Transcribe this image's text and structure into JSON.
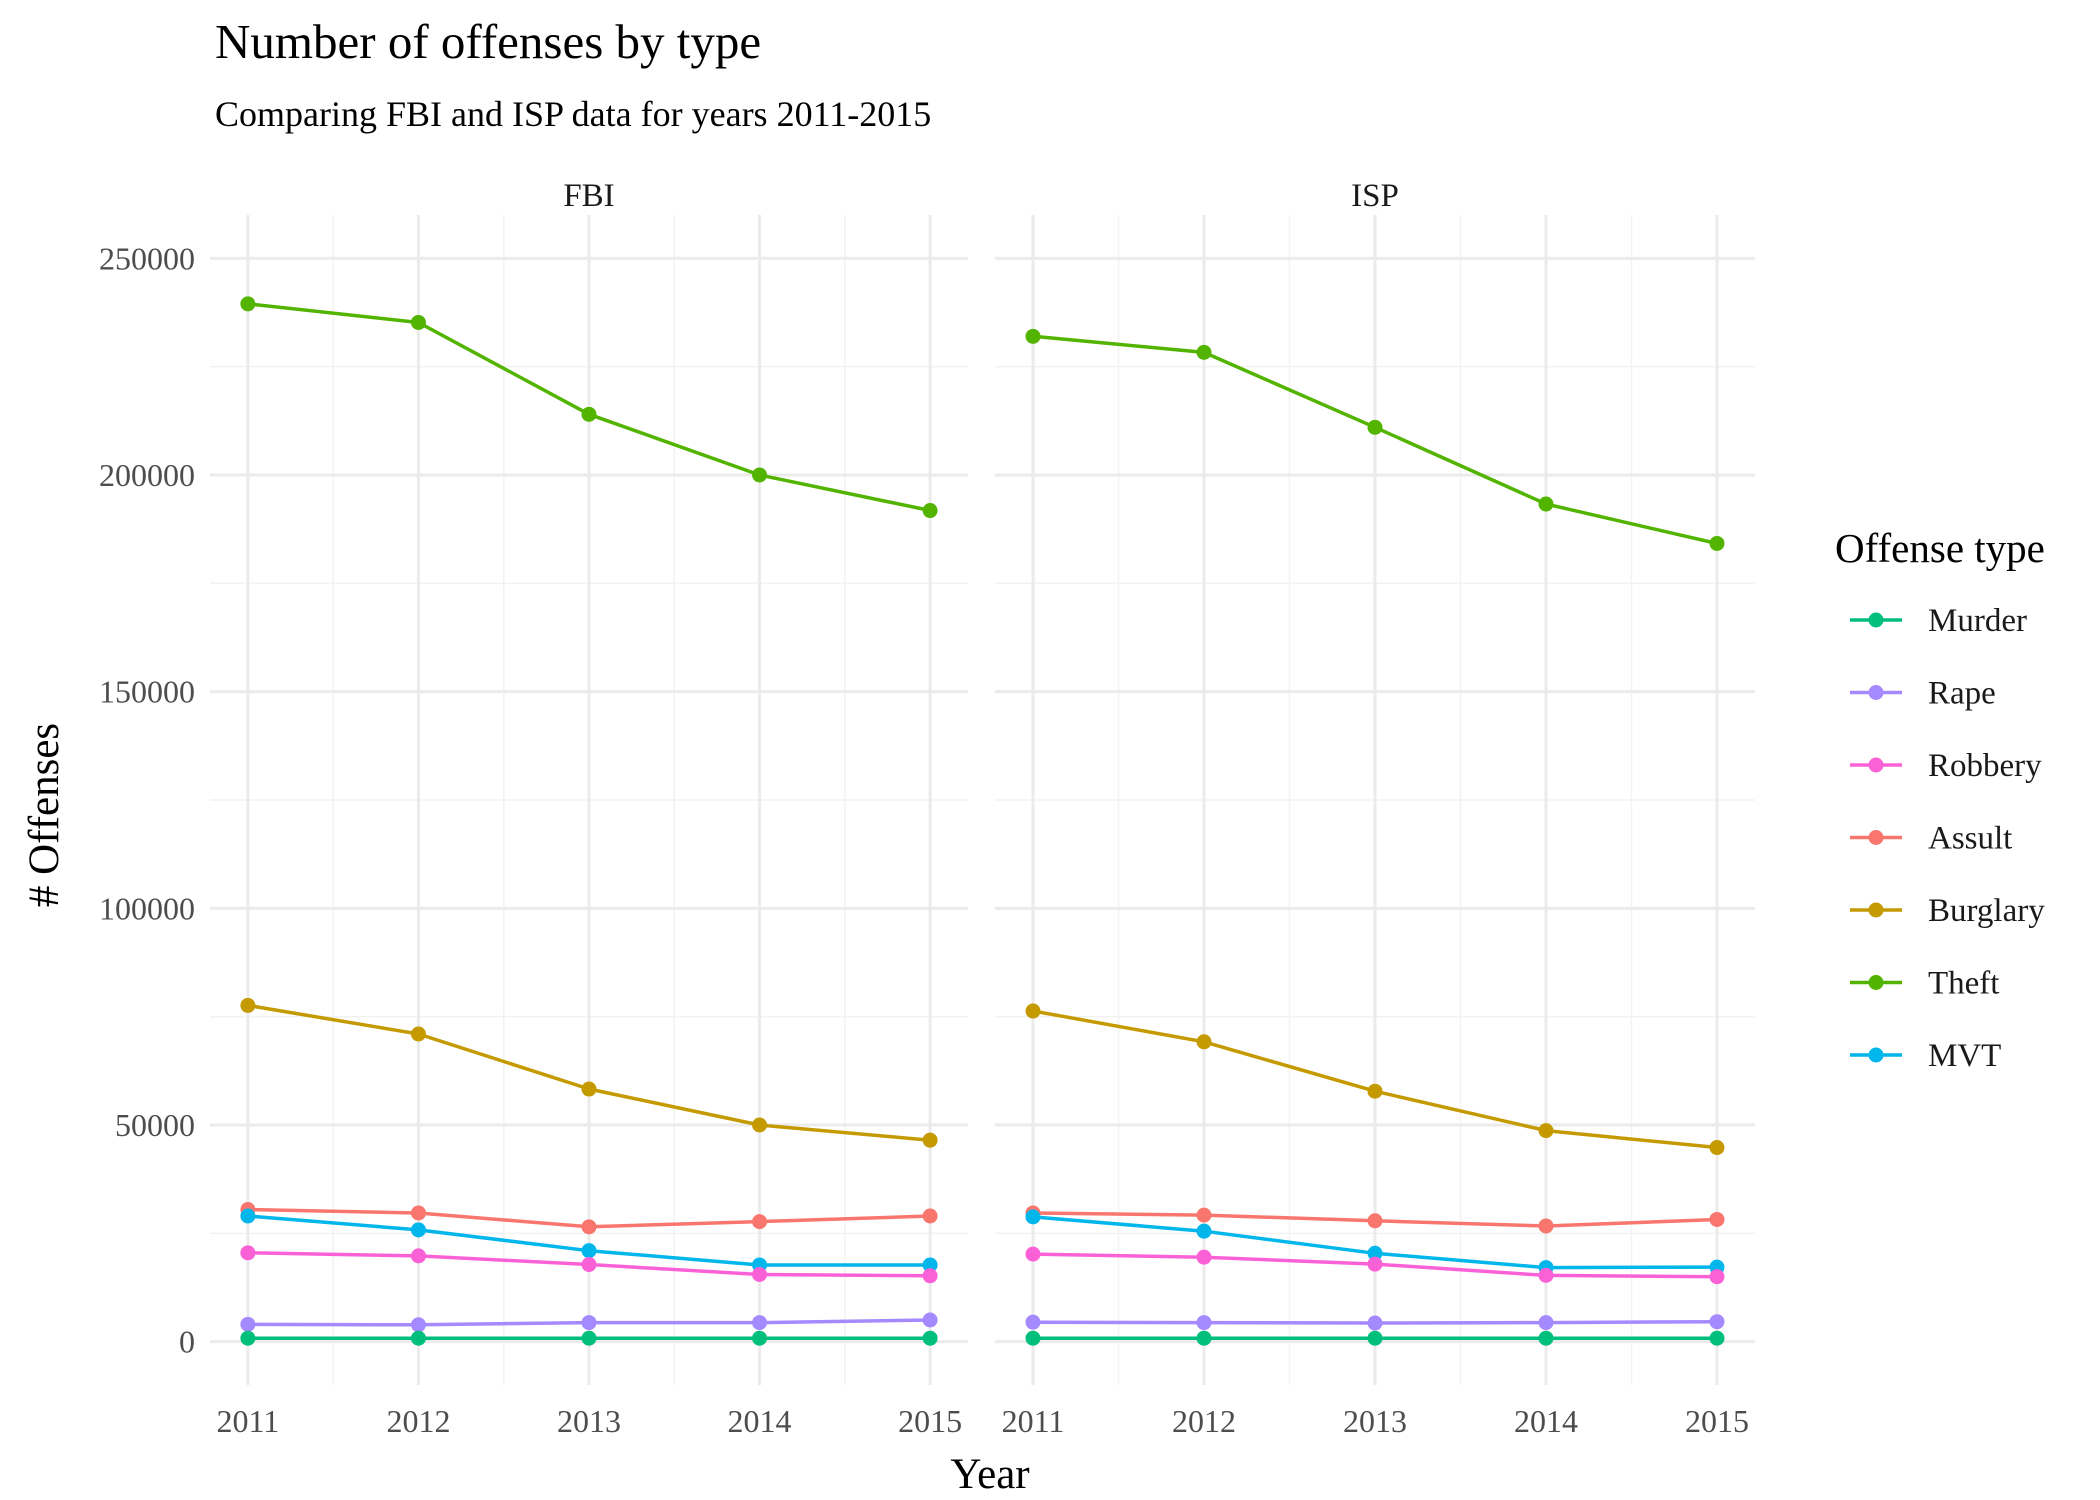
{
  "chart_data": {
    "type": "line",
    "title": "Number of offenses by type",
    "subtitle": "Comparing FBI and ISP data for years 2011-2015",
    "xlabel": "Year",
    "ylabel": "# Offenses",
    "x": [
      2011,
      2012,
      2013,
      2014,
      2015
    ],
    "x_ticks": [
      "2011",
      "2012",
      "2013",
      "2014",
      "2015"
    ],
    "ylim": [
      -10000,
      260000
    ],
    "y_ticks": [
      "0",
      "50000",
      "100000",
      "150000",
      "200000",
      "250000"
    ],
    "y_tick_values": [
      0,
      50000,
      100000,
      150000,
      200000,
      250000
    ],
    "grid": true,
    "legend": {
      "title": "Offense type",
      "position": "right",
      "entries": [
        "Murder",
        "Rape",
        "Robbery",
        "Assult",
        "Burglary",
        "Theft",
        "MVT"
      ]
    },
    "colors": {
      "Murder": "#00BF7D",
      "Rape": "#A58AFF",
      "Robbery": "#FB61D7",
      "Assult": "#F8766D",
      "Burglary": "#C49A00",
      "Theft": "#53B400",
      "MVT": "#00B6EB"
    },
    "panels": [
      {
        "name": "FBI",
        "series": [
          {
            "name": "Murder",
            "values": [
              800,
              800,
              800,
              800,
              800
            ]
          },
          {
            "name": "Rape",
            "values": [
              4000,
              3900,
              4400,
              4400,
              5000
            ]
          },
          {
            "name": "Robbery",
            "values": [
              20500,
              19800,
              17800,
              15500,
              15200
            ]
          },
          {
            "name": "Assult",
            "values": [
              30500,
              29700,
              26500,
              27700,
              29000
            ]
          },
          {
            "name": "Burglary",
            "values": [
              77600,
              71000,
              58300,
              50000,
              46500
            ]
          },
          {
            "name": "Theft",
            "values": [
              239500,
              235200,
              214000,
              200000,
              191800
            ]
          },
          {
            "name": "MVT",
            "values": [
              29000,
              25800,
              21000,
              17700,
              17700
            ]
          }
        ]
      },
      {
        "name": "ISP",
        "series": [
          {
            "name": "Murder",
            "values": [
              800,
              800,
              800,
              800,
              800
            ]
          },
          {
            "name": "Rape",
            "values": [
              4500,
              4400,
              4300,
              4400,
              4600
            ]
          },
          {
            "name": "Robbery",
            "values": [
              20200,
              19500,
              17900,
              15300,
              15000
            ]
          },
          {
            "name": "Assult",
            "values": [
              29700,
              29200,
              27900,
              26700,
              28200
            ]
          },
          {
            "name": "Burglary",
            "values": [
              76300,
              69200,
              57800,
              48700,
              44800
            ]
          },
          {
            "name": "Theft",
            "values": [
              232000,
              228300,
              211000,
              193300,
              184200
            ]
          },
          {
            "name": "MVT",
            "values": [
              28800,
              25500,
              20400,
              17100,
              17200
            ]
          }
        ]
      }
    ]
  }
}
